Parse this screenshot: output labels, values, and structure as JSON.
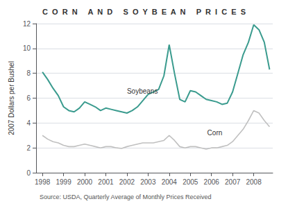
{
  "chart_data": {
    "type": "line",
    "title": "C  O  R  N     A  N  D     S  O  Y  B  E  A  N     P  R  I  C  E  S",
    "ylabel": "2007 Dollars per Bushel",
    "source": "Source: USDA, Quarterly Average of Monthly Prices Received",
    "x": [
      1998,
      1998.25,
      1998.5,
      1998.75,
      1999,
      1999.25,
      1999.5,
      1999.75,
      2000,
      2000.25,
      2000.5,
      2000.75,
      2001,
      2001.25,
      2001.5,
      2001.75,
      2002,
      2002.25,
      2002.5,
      2002.75,
      2003,
      2003.25,
      2003.5,
      2003.75,
      2004,
      2004.25,
      2004.5,
      2004.75,
      2005,
      2005.25,
      2005.5,
      2005.75,
      2006,
      2006.25,
      2006.5,
      2006.75,
      2007,
      2007.25,
      2007.5,
      2007.75,
      2008,
      2008.25,
      2008.5,
      2008.75
    ],
    "series": [
      {
        "name": "Soybeans",
        "color": "#3a9b8e",
        "values": [
          8.1,
          7.5,
          6.8,
          6.2,
          5.3,
          5.0,
          4.9,
          5.2,
          5.7,
          5.5,
          5.3,
          5.0,
          5.2,
          5.1,
          5.0,
          4.9,
          4.8,
          5.0,
          5.3,
          5.8,
          6.3,
          6.5,
          6.7,
          7.8,
          10.3,
          8.0,
          5.9,
          5.7,
          6.6,
          6.5,
          6.2,
          5.9,
          5.8,
          5.7,
          5.5,
          5.6,
          6.5,
          8.0,
          9.5,
          10.5,
          11.9,
          11.5,
          10.5,
          8.3
        ]
      },
      {
        "name": "Corn",
        "color": "#c0c0c0",
        "values": [
          3.0,
          2.7,
          2.5,
          2.4,
          2.2,
          2.1,
          2.1,
          2.2,
          2.3,
          2.2,
          2.1,
          2.0,
          2.1,
          2.1,
          2.0,
          1.95,
          2.1,
          2.2,
          2.3,
          2.4,
          2.4,
          2.4,
          2.5,
          2.6,
          3.0,
          2.6,
          2.1,
          2.0,
          2.1,
          2.1,
          2.0,
          1.9,
          2.0,
          2.0,
          2.1,
          2.2,
          2.5,
          3.0,
          3.5,
          4.2,
          5.0,
          4.8,
          4.2,
          3.7
        ]
      }
    ],
    "annotations": [
      {
        "text": "Soybeans",
        "x": 2002.0,
        "y": 6.55
      },
      {
        "text": "Corn",
        "x": 2005.8,
        "y": 3.2
      }
    ],
    "xlim": [
      1997.7,
      2008.9
    ],
    "xticks": [
      1998,
      1999,
      2000,
      2001,
      2002,
      2003,
      2004,
      2005,
      2006,
      2007,
      2008
    ],
    "ylim": [
      0,
      12
    ],
    "yticks": [
      0,
      2,
      4,
      6,
      8,
      10,
      12
    ],
    "grid": true
  }
}
